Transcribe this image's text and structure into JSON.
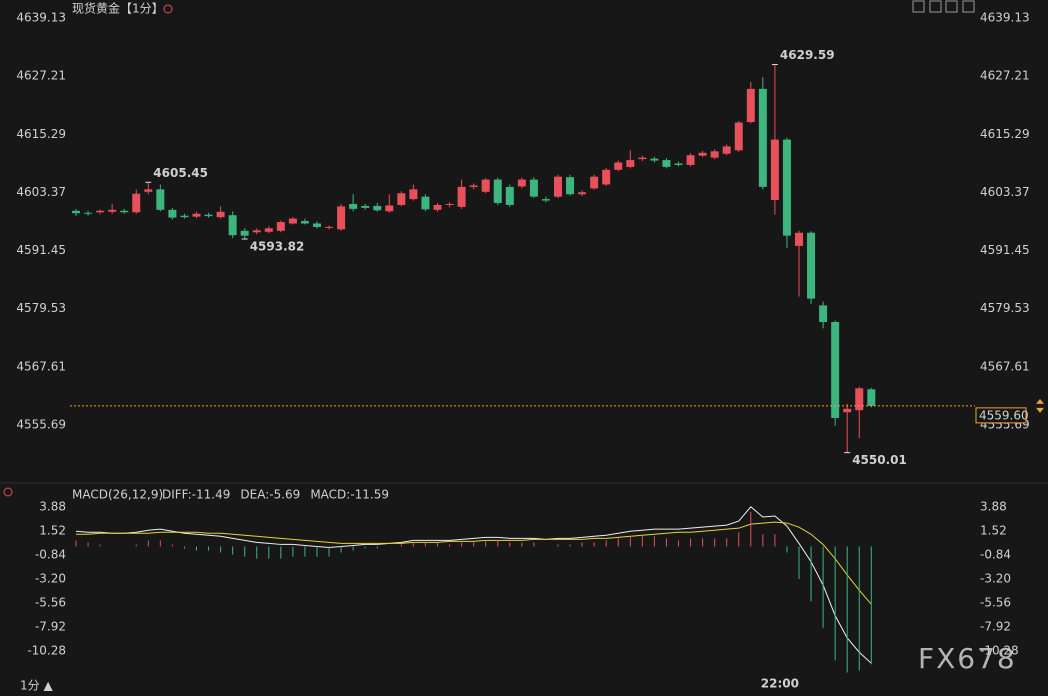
{
  "chart_data": [
    {
      "type": "candlestick",
      "title": "现货黄金【1分】",
      "categories": [
        null,
        null,
        null,
        null,
        null,
        null,
        null,
        null,
        null,
        null,
        null,
        null,
        null,
        null,
        null,
        null,
        null,
        null,
        null,
        null,
        null,
        null,
        null,
        null,
        null,
        null,
        null,
        null,
        null,
        null,
        null,
        null,
        null,
        null,
        null,
        null,
        null,
        null,
        null,
        null,
        null,
        null,
        null,
        null,
        null,
        null,
        null,
        null,
        null,
        null,
        null,
        null,
        null,
        null,
        null,
        null,
        null,
        null,
        "22:00",
        null,
        null,
        null,
        null,
        null,
        null,
        null,
        null
      ],
      "open": [
        4599.6,
        4599.2,
        4599.3,
        4599.4,
        4599.6,
        4599.3,
        4603.5,
        4604.0,
        4599.8,
        4598.6,
        4598.4,
        4598.8,
        4598.3,
        4598.7,
        4595.5,
        4595.2,
        4595.3,
        4595.5,
        4597.0,
        4597.5,
        4597.0,
        4596.1,
        4595.8,
        4601.0,
        4600.6,
        4600.6,
        4599.5,
        4600.8,
        4602.0,
        4602.5,
        4599.8,
        4600.8,
        4600.4,
        4604.5,
        4603.5,
        4606.0,
        4604.5,
        4604.6,
        4606.0,
        4602.0,
        4602.5,
        4606.5,
        4603.0,
        4604.2,
        4605.0,
        4608.0,
        4608.6,
        4610.2,
        4610.3,
        4610.0,
        4609.3,
        4609.0,
        4610.9,
        4610.5,
        4611.3,
        4612.0,
        4617.8,
        4624.6,
        4601.8,
        4614.2,
        4592.4,
        4595.1,
        4580.2,
        4576.8,
        4558.3,
        4558.7,
        4563.0
      ],
      "high": [
        4600.0,
        4599.6,
        4599.9,
        4601.0,
        4600.0,
        4604.0,
        4605.45,
        4605.0,
        4600.2,
        4599.0,
        4599.4,
        4599.2,
        4600.5,
        4599.5,
        4596.0,
        4596.0,
        4596.4,
        4597.6,
        4598.3,
        4598.0,
        4597.4,
        4596.6,
        4601.0,
        4603.0,
        4601.0,
        4601.2,
        4603.0,
        4603.6,
        4605.0,
        4603.0,
        4601.2,
        4601.4,
        4606.0,
        4605.2,
        4606.3,
        4606.4,
        4605.0,
        4606.4,
        4606.5,
        4602.5,
        4607.0,
        4607.0,
        4603.8,
        4607.0,
        4608.4,
        4609.9,
        4612.0,
        4610.9,
        4610.7,
        4610.4,
        4609.7,
        4611.4,
        4611.9,
        4612.2,
        4613.2,
        4618.0,
        4626.0,
        4627.0,
        4629.59,
        4614.6,
        4595.5,
        4595.4,
        4581.0,
        4577.1,
        4560.0,
        4563.5,
        4563.3
      ],
      "low": [
        4598.5,
        4598.6,
        4598.9,
        4599.0,
        4599.0,
        4599.0,
        4603.0,
        4599.5,
        4597.8,
        4598.0,
        4598.1,
        4598.2,
        4598.0,
        4594.0,
        4593.82,
        4594.8,
        4595.0,
        4595.2,
        4596.8,
        4596.8,
        4596.0,
        4595.8,
        4595.5,
        4599.5,
        4599.8,
        4599.4,
        4599.2,
        4600.5,
        4601.7,
        4599.5,
        4599.4,
        4600.3,
        4600.0,
        4604.0,
        4603.2,
        4600.8,
        4600.4,
        4604.2,
        4602.2,
        4601.3,
        4602.2,
        4602.7,
        4602.6,
        4603.9,
        4604.7,
        4607.7,
        4608.3,
        4609.8,
        4609.5,
        4608.3,
        4608.7,
        4608.7,
        4610.6,
        4610.2,
        4611.0,
        4611.7,
        4617.5,
        4604.0,
        4598.8,
        4592.0,
        4582.0,
        4580.5,
        4575.5,
        4555.5,
        4550.01,
        4553.0,
        4559.3
      ],
      "close": [
        4599.1,
        4599.0,
        4599.6,
        4599.8,
        4599.3,
        4603.1,
        4604.0,
        4599.8,
        4598.2,
        4598.3,
        4599.0,
        4598.5,
        4599.4,
        4594.6,
        4594.5,
        4595.6,
        4596.0,
        4597.3,
        4598.0,
        4597.0,
        4596.3,
        4596.3,
        4600.5,
        4600.0,
        4600.2,
        4599.7,
        4600.7,
        4603.2,
        4604.0,
        4599.9,
        4600.8,
        4601.0,
        4604.5,
        4604.8,
        4606.0,
        4601.2,
        4600.8,
        4606.0,
        4602.5,
        4601.7,
        4606.6,
        4603.0,
        4603.4,
        4606.6,
        4608.0,
        4609.5,
        4610.0,
        4610.5,
        4609.9,
        4608.6,
        4609.0,
        4611.0,
        4611.5,
        4611.8,
        4612.8,
        4617.7,
        4624.6,
        4604.5,
        4614.2,
        4594.5,
        4595.1,
        4581.6,
        4576.8,
        4557.1,
        4559.0,
        4563.2,
        4559.6
      ],
      "up_color": "#e8505c",
      "down_color": "#3db57e",
      "annotations": [
        4605.45,
        4593.82,
        4629.59,
        4550.01
      ],
      "last_price": {
        "value": 4559.6,
        "label": "4559.60"
      },
      "last_price_color": "#f0a030",
      "ylim": [
        4544.4,
        4641.8
      ],
      "yticks": [
        4555.69,
        4567.61,
        4579.53,
        4591.45,
        4603.37,
        4615.29,
        4627.21,
        4639.13
      ],
      "grid": false
    },
    {
      "type": "macd",
      "indicator_label": "MACD(26,12,9)",
      "series": [
        {
          "name": "DIFF",
          "legend_label": "DIFF:-11.49",
          "color": "#f0f0f0",
          "values": [
            1.5,
            1.4,
            1.4,
            1.3,
            1.3,
            1.4,
            1.6,
            1.7,
            1.5,
            1.3,
            1.2,
            1.1,
            1.0,
            0.8,
            0.6,
            0.4,
            0.3,
            0.2,
            0.2,
            0.1,
            0.0,
            -0.1,
            0.0,
            0.1,
            0.2,
            0.2,
            0.3,
            0.4,
            0.6,
            0.6,
            0.6,
            0.6,
            0.7,
            0.8,
            0.9,
            0.9,
            0.8,
            0.8,
            0.8,
            0.7,
            0.8,
            0.8,
            0.9,
            1.0,
            1.1,
            1.3,
            1.5,
            1.6,
            1.7,
            1.7,
            1.7,
            1.8,
            1.9,
            2.0,
            2.1,
            2.5,
            3.9,
            2.9,
            3.0,
            2.0,
            0.3,
            -1.5,
            -3.8,
            -6.8,
            -9.0,
            -10.4,
            -11.49
          ]
        },
        {
          "name": "DEA",
          "legend_label": "DEA:-5.69",
          "color": "#e3d63a",
          "values": [
            1.2,
            1.2,
            1.3,
            1.3,
            1.3,
            1.3,
            1.3,
            1.4,
            1.4,
            1.4,
            1.4,
            1.3,
            1.3,
            1.2,
            1.1,
            1.0,
            0.9,
            0.8,
            0.7,
            0.6,
            0.5,
            0.4,
            0.3,
            0.3,
            0.3,
            0.3,
            0.3,
            0.3,
            0.4,
            0.4,
            0.4,
            0.5,
            0.5,
            0.5,
            0.6,
            0.6,
            0.6,
            0.6,
            0.7,
            0.7,
            0.7,
            0.7,
            0.7,
            0.8,
            0.8,
            0.9,
            1.0,
            1.1,
            1.2,
            1.3,
            1.4,
            1.4,
            1.5,
            1.6,
            1.7,
            1.8,
            2.2,
            2.3,
            2.4,
            2.3,
            1.9,
            1.2,
            0.2,
            -1.2,
            -2.8,
            -4.3,
            -5.69
          ]
        },
        {
          "name": "MACD",
          "legend_label": "MACD:-11.59",
          "color": "#c93fd6",
          "up_color": "#e8505c",
          "down_color": "#3db57e",
          "values": [
            0.6,
            0.4,
            0.2,
            0,
            0,
            0.2,
            0.6,
            0.6,
            0.2,
            -0.2,
            -0.4,
            -0.4,
            -0.6,
            -0.8,
            -1.0,
            -1.2,
            -1.2,
            -1.2,
            -1.0,
            -1.0,
            -1.0,
            -1.0,
            -0.6,
            -0.4,
            -0.2,
            -0.2,
            0,
            0.2,
            0.4,
            0.4,
            0.4,
            0.2,
            0.4,
            0.6,
            0.6,
            0.6,
            0.4,
            0.4,
            0.4,
            0,
            0.2,
            0.2,
            0.4,
            0.4,
            0.6,
            0.8,
            1.0,
            1.0,
            1.0,
            0.8,
            0.6,
            0.8,
            0.8,
            0.8,
            0.8,
            1.4,
            3.4,
            1.2,
            1.2,
            -0.6,
            -3.2,
            -5.4,
            -8.0,
            -11.2,
            -12.4,
            -12.2,
            -11.59
          ]
        }
      ],
      "ylim": [
        -12.64,
        4.57
      ],
      "yticks": [
        {
          "value": -10.28,
          "label": "-10.28"
        },
        -7.92,
        -5.56,
        {
          "value": -3.2,
          "label": "-3.20"
        },
        -0.84,
        1.52,
        3.88
      ],
      "grid": false
    }
  ],
  "footer": {
    "period": "1分 ▲"
  },
  "watermark": "FX678"
}
